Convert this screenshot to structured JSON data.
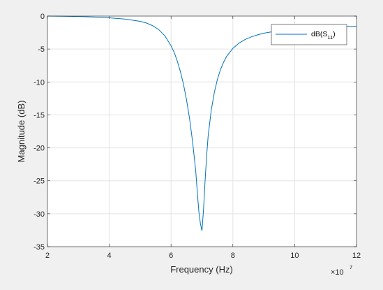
{
  "figure": {
    "background": "#f0f0f0",
    "axes_background": "#ffffff",
    "line_color": "#0072bd",
    "grid_color": "#e3e3e3"
  },
  "chart_data": {
    "type": "line",
    "title": "",
    "xlabel": "Frequency (Hz)",
    "ylabel": "Magnitude (dB)",
    "x_exponent_label": "×10",
    "x_exponent_power": "7",
    "xlim": [
      20000000,
      120000000
    ],
    "ylim": [
      -35,
      0
    ],
    "x_scale_factor": 10000000,
    "x_ticks": [
      2,
      4,
      6,
      8,
      10,
      12
    ],
    "x_tick_labels": [
      "2",
      "4",
      "6",
      "8",
      "10",
      "12"
    ],
    "y_ticks": [
      0,
      -5,
      -10,
      -15,
      -20,
      -25,
      -30,
      -35
    ],
    "y_tick_labels": [
      "0",
      "-5",
      "-10",
      "-15",
      "-20",
      "-25",
      "-30",
      "-35"
    ],
    "grid": true,
    "legend": {
      "location": "top-right",
      "entries": [
        {
          "prefix": "dB(S",
          "subscript": "11",
          "suffix": ")"
        }
      ]
    },
    "series": [
      {
        "name": "dB(S11)",
        "color": "#0072bd",
        "x": [
          20000000,
          25000000,
          30000000,
          35000000,
          40000000,
          45000000,
          50000000,
          52000000,
          54000000,
          56000000,
          58000000,
          60000000,
          61000000,
          62000000,
          63000000,
          64000000,
          65000000,
          66000000,
          67000000,
          68000000,
          68500000,
          69000000,
          69500000,
          70000000,
          70500000,
          71000000,
          71500000,
          72000000,
          73000000,
          74000000,
          75000000,
          76000000,
          77000000,
          78000000,
          80000000,
          82000000,
          84000000,
          86000000,
          88000000,
          90000000,
          95000000,
          100000000,
          105000000,
          110000000,
          115000000,
          120000000
        ],
        "y": [
          0,
          -0.03,
          -0.07,
          -0.14,
          -0.26,
          -0.45,
          -0.8,
          -1.05,
          -1.45,
          -2.05,
          -3.0,
          -4.5,
          -5.5,
          -6.8,
          -8.4,
          -10.3,
          -12.7,
          -15.6,
          -19.2,
          -23.6,
          -26.8,
          -29.7,
          -31.5,
          -32.6,
          -29.4,
          -25.1,
          -21.3,
          -18.2,
          -14.3,
          -11.6,
          -9.6,
          -8.1,
          -7.0,
          -6.1,
          -4.9,
          -4.1,
          -3.55,
          -3.15,
          -2.85,
          -2.6,
          -2.2,
          -1.95,
          -1.8,
          -1.7,
          -1.62,
          -1.55
        ]
      }
    ]
  }
}
